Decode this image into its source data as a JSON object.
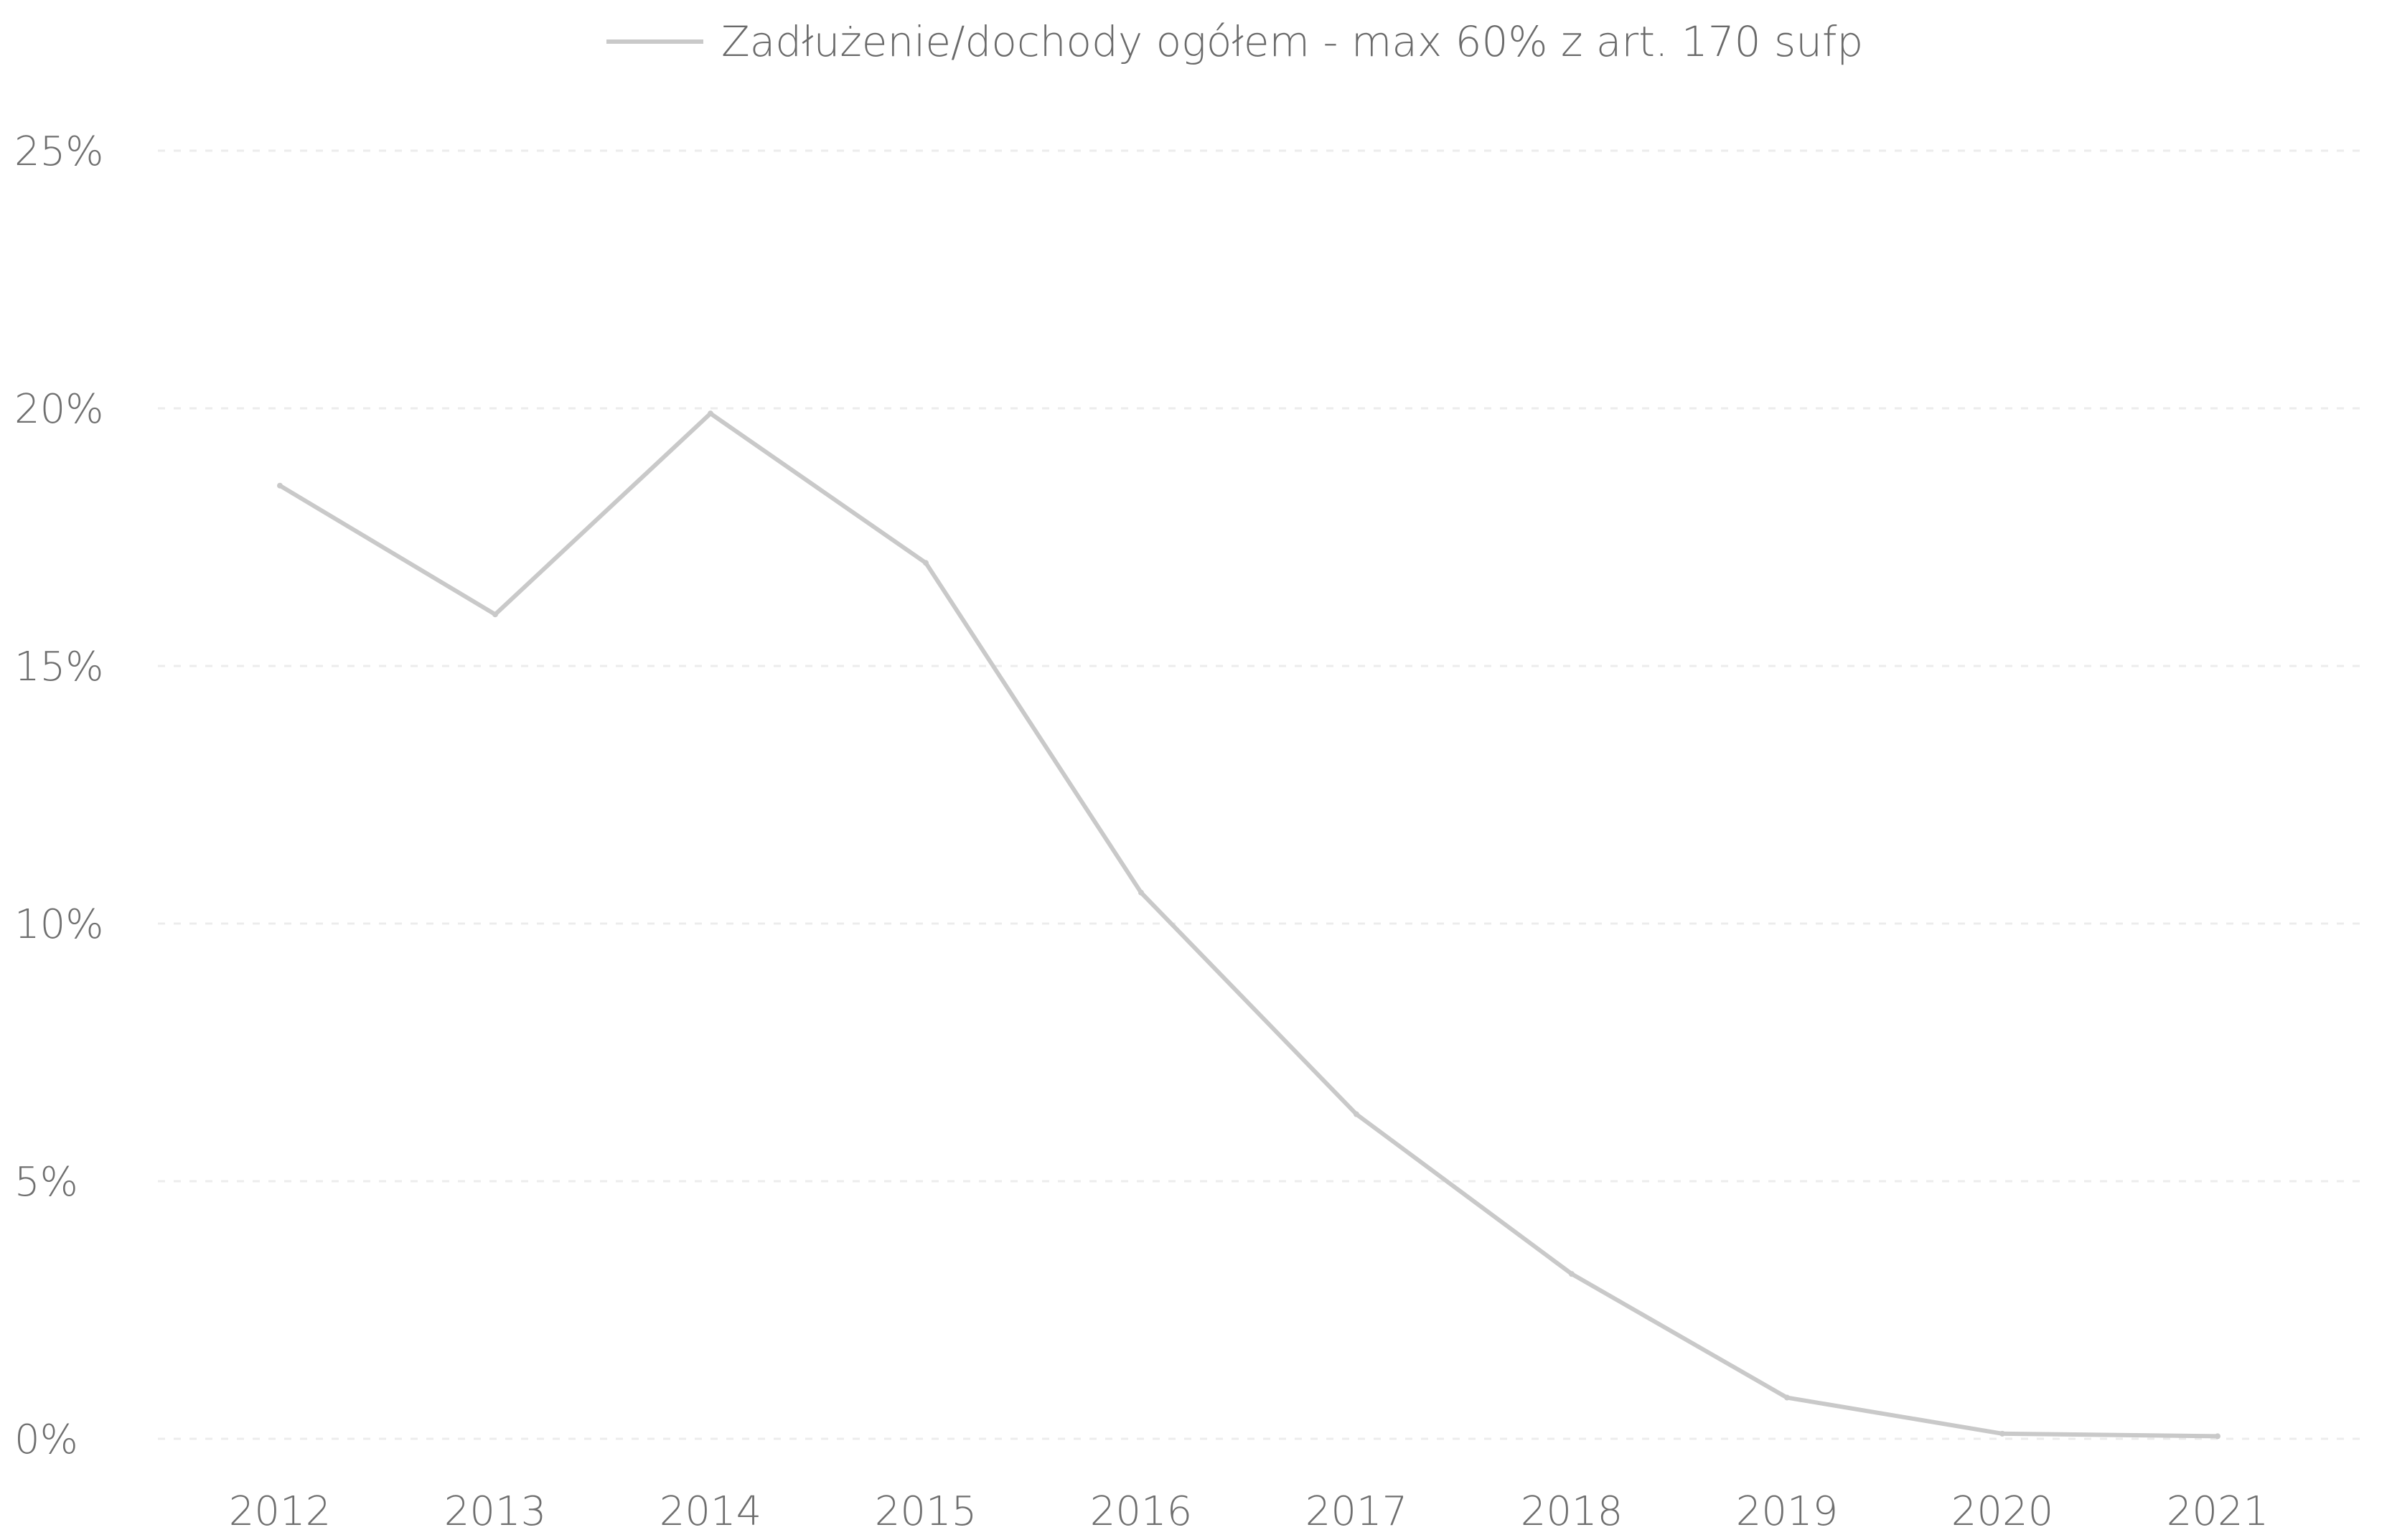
{
  "chart_data": {
    "type": "line",
    "title": "",
    "xlabel": "",
    "ylabel": "",
    "categories": [
      "2012",
      "2013",
      "2014",
      "2015",
      "2016",
      "2017",
      "2018",
      "2019",
      "2020",
      "2021"
    ],
    "yticks": [
      "0%",
      "5%",
      "10%",
      "15%",
      "20%",
      "25%"
    ],
    "ylim": [
      0,
      25
    ],
    "grid": true,
    "legend_position": "top",
    "series": [
      {
        "name": "Zadłużenie/dochody ogółem - max 60% z art. 170 sufp",
        "color": "#c9c9c9",
        "values": [
          18.5,
          16.0,
          19.9,
          17.0,
          10.6,
          6.3,
          3.2,
          0.8,
          0.1,
          0.05
        ]
      }
    ]
  }
}
